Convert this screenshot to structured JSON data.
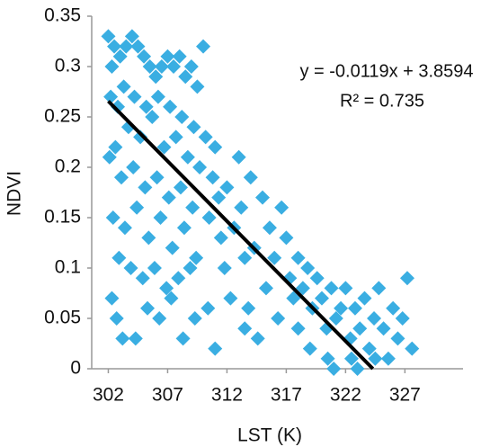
{
  "chart_data": {
    "type": "scatter",
    "x_label": "LST (K)",
    "y_label": "NDVI",
    "color": "#3aaee2",
    "x": [
      302.0,
      302.3,
      302.5,
      303.0,
      303.5,
      304.0,
      304.5,
      305.0,
      305.5,
      306.0,
      306.5,
      307.0,
      307.5,
      308.0,
      308.5,
      309.0,
      309.5,
      310.0,
      302.2,
      302.8,
      303.3,
      304.2,
      305.2,
      306.2,
      307.2,
      308.2,
      309.2,
      303.7,
      304.7,
      305.7,
      306.7,
      307.7,
      308.7,
      309.7,
      302.1,
      302.6,
      303.1,
      304.1,
      305.1,
      306.1,
      307.1,
      308.1,
      309.1,
      302.4,
      303.4,
      304.4,
      305.4,
      306.4,
      307.4,
      308.4,
      309.4,
      302.9,
      303.9,
      304.9,
      305.9,
      306.9,
      307.9,
      308.9,
      302.3,
      302.7,
      303.2,
      304.3,
      305.3,
      306.3,
      307.3,
      308.3,
      309.3,
      310.2,
      310.5,
      310.8,
      311.0,
      311.3,
      311.5,
      311.8,
      312.0,
      312.3,
      312.6,
      313.0,
      313.2,
      313.5,
      313.8,
      314.0,
      314.3,
      314.6,
      315.0,
      315.3,
      315.6,
      316.0,
      316.3,
      316.6,
      317.0,
      317.3,
      317.6,
      318.0,
      318.4,
      318.8,
      319.2,
      319.6,
      320.0,
      320.4,
      320.8,
      321.2,
      321.6,
      322.0,
      322.4,
      322.8,
      323.2,
      323.6,
      324.0,
      324.4,
      324.8,
      325.2,
      325.6,
      326.0,
      326.4,
      326.8,
      327.2,
      327.6,
      320.5,
      321.0,
      322.5,
      323.0,
      324.5,
      313.5,
      311.0,
      310.4,
      319.0,
      318.0
    ],
    "values": [
      0.33,
      0.3,
      0.32,
      0.31,
      0.32,
      0.33,
      0.32,
      0.31,
      0.3,
      0.29,
      0.3,
      0.31,
      0.3,
      0.31,
      0.29,
      0.3,
      0.28,
      0.32,
      0.27,
      0.26,
      0.28,
      0.27,
      0.26,
      0.27,
      0.26,
      0.25,
      0.24,
      0.24,
      0.23,
      0.25,
      0.22,
      0.23,
      0.21,
      0.2,
      0.21,
      0.22,
      0.19,
      0.2,
      0.18,
      0.19,
      0.17,
      0.18,
      0.16,
      0.15,
      0.14,
      0.16,
      0.13,
      0.15,
      0.12,
      0.14,
      0.11,
      0.11,
      0.1,
      0.09,
      0.1,
      0.08,
      0.09,
      0.1,
      0.07,
      0.05,
      0.03,
      0.03,
      0.06,
      0.05,
      0.07,
      0.03,
      0.05,
      0.23,
      0.15,
      0.19,
      0.22,
      0.17,
      0.13,
      0.1,
      0.18,
      0.07,
      0.14,
      0.21,
      0.16,
      0.11,
      0.06,
      0.19,
      0.12,
      0.03,
      0.17,
      0.08,
      0.14,
      0.11,
      0.05,
      0.16,
      0.13,
      0.09,
      0.07,
      0.11,
      0.08,
      0.1,
      0.06,
      0.09,
      0.07,
      0.04,
      0.08,
      0.05,
      0.06,
      0.08,
      0.03,
      0.06,
      0.04,
      0.07,
      0.02,
      0.05,
      0.08,
      0.04,
      0.01,
      0.06,
      0.03,
      0.05,
      0.09,
      0.02,
      0.01,
      0.0,
      0.01,
      0.0,
      0.01,
      0.04,
      0.02,
      0.06,
      0.02,
      0.04
    ],
    "trendline": {
      "x": [
        302,
        324.3
      ],
      "y": [
        0.2656,
        0
      ],
      "color": "#000000"
    },
    "annotations": [
      "y = -0.0119x + 3.8594",
      "R² = 0.735"
    ],
    "xlim": [
      300.6,
      331.9
    ],
    "xticks": [
      302,
      307,
      312,
      317,
      322,
      327
    ],
    "ylim": [
      0,
      0.35
    ],
    "yticks": [
      0,
      0.05,
      0.1,
      0.15,
      0.2,
      0.25,
      0.3,
      0.35
    ],
    "grid": false
  }
}
